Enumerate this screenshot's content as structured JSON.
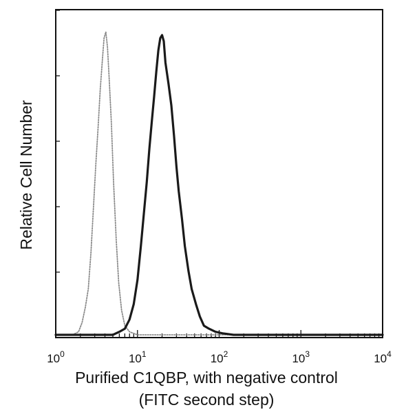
{
  "chart_data": {
    "type": "line",
    "x_scale": "log",
    "xlim": [
      1,
      10000
    ],
    "ylim": [
      0,
      1
    ],
    "grid": false,
    "title": "",
    "ylabel": "Relative Cell Number",
    "xlabel": "Purified C1QBP, with negative control",
    "xlabel_line2": "(FITC second step)",
    "x_ticks": [
      {
        "base": "10",
        "exp": "0",
        "value": 1
      },
      {
        "base": "10",
        "exp": "1",
        "value": 10
      },
      {
        "base": "10",
        "exp": "2",
        "value": 100
      },
      {
        "base": "10",
        "exp": "3",
        "value": 1000
      },
      {
        "base": "10",
        "exp": "4",
        "value": 10000
      }
    ],
    "series": [
      {
        "role": "negative control",
        "style": "dotted-gray",
        "color": "#8a8a8a",
        "x": [
          1.0,
          1.6,
          1.9,
          2.1,
          2.3,
          2.5,
          2.7,
          2.9,
          3.1,
          3.3,
          3.5,
          3.7,
          3.9,
          4.1,
          4.3,
          4.5,
          4.8,
          5.1,
          5.5,
          5.9,
          6.4,
          7.0,
          8.0,
          10,
          20,
          100,
          1000,
          10000
        ],
        "y": [
          0.0,
          0.0,
          0.01,
          0.04,
          0.09,
          0.15,
          0.27,
          0.42,
          0.56,
          0.68,
          0.8,
          0.89,
          0.97,
          0.99,
          0.94,
          0.84,
          0.69,
          0.5,
          0.31,
          0.17,
          0.08,
          0.03,
          0.01,
          0.0,
          0.0,
          0.0,
          0.0,
          0.0
        ]
      },
      {
        "role": "Purified C1QBP",
        "style": "solid-black",
        "color": "#1a1a1a",
        "x": [
          1.0,
          5.0,
          6.0,
          7.0,
          8.0,
          9.0,
          10,
          11,
          12,
          13,
          14,
          15,
          16,
          17,
          18,
          19,
          20,
          21,
          22,
          24,
          26,
          28,
          30,
          32,
          35,
          38,
          42,
          46,
          52,
          58,
          65,
          75,
          90,
          110,
          150,
          300,
          1000,
          10000
        ],
        "y": [
          0.0,
          0.0,
          0.01,
          0.02,
          0.05,
          0.1,
          0.18,
          0.29,
          0.4,
          0.5,
          0.61,
          0.7,
          0.78,
          0.86,
          0.93,
          0.97,
          0.98,
          0.96,
          0.89,
          0.82,
          0.75,
          0.65,
          0.55,
          0.47,
          0.38,
          0.29,
          0.21,
          0.15,
          0.1,
          0.06,
          0.03,
          0.02,
          0.01,
          0.005,
          0.0,
          0.0,
          0.0,
          0.0
        ]
      }
    ]
  }
}
